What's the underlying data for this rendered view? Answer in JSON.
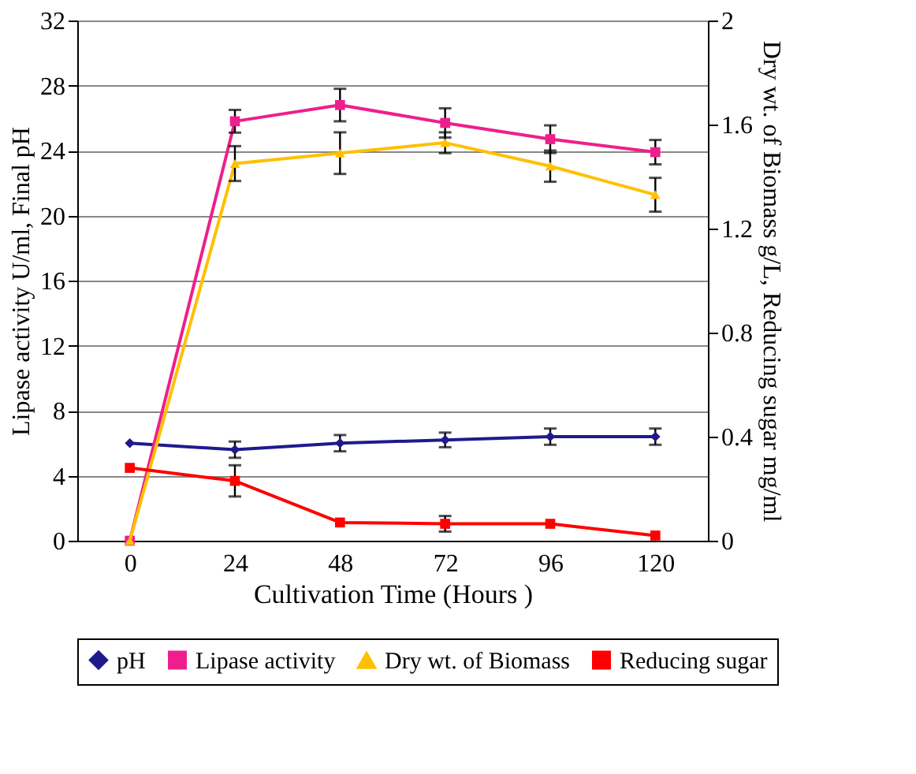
{
  "chart_data": {
    "type": "line",
    "xlabel": "Cultivation Time (Hours )",
    "ylabel": "Lipase activity U/ml, Final pH",
    "y2label": "Dry wt. of Biomass g/L, Reducing sugar mg/ml",
    "categories": [
      "0",
      "24",
      "48",
      "72",
      "96",
      "120"
    ],
    "series": [
      {
        "name": "pH",
        "color": "#1f1a8c",
        "marker": "diamond",
        "values": [
          6.0,
          5.6,
          6.0,
          6.2,
          6.4,
          6.4
        ],
        "errors": [
          null,
          0.5,
          0.5,
          0.45,
          0.5,
          0.5
        ]
      },
      {
        "name": "Lipase activity",
        "color": "#ee1f8c",
        "marker": "square",
        "values": [
          0,
          25.8,
          26.8,
          25.7,
          24.7,
          23.9
        ],
        "errors": [
          null,
          0.7,
          1.0,
          0.9,
          0.85,
          0.75
        ]
      },
      {
        "name": "Dry wt. of Biomass",
        "color": "#ffc000",
        "marker": "triangle",
        "axis": "y2",
        "values": [
          0,
          1.45,
          1.49,
          1.53,
          1.44,
          1.33
        ],
        "errors": [
          null,
          0.067,
          0.08,
          0.04,
          0.06,
          0.065
        ]
      },
      {
        "name": "Reducing sugar",
        "color": "#ff0000",
        "marker": "square",
        "axis": "y2",
        "values": [
          0.28,
          0.23,
          0.07,
          0.065,
          0.065,
          0.02
        ],
        "errors": [
          null,
          0.06,
          null,
          0.03,
          null,
          null
        ]
      }
    ],
    "ylim": [
      0,
      32
    ],
    "yticks": [
      0,
      4,
      8,
      12,
      16,
      20,
      24,
      28,
      32
    ],
    "y2lim": [
      0,
      2
    ],
    "y2ticks": [
      0,
      0.4,
      0.8,
      1.2,
      1.6,
      2
    ],
    "grid": "y",
    "legend": "bottom",
    "line_style": "solid"
  }
}
